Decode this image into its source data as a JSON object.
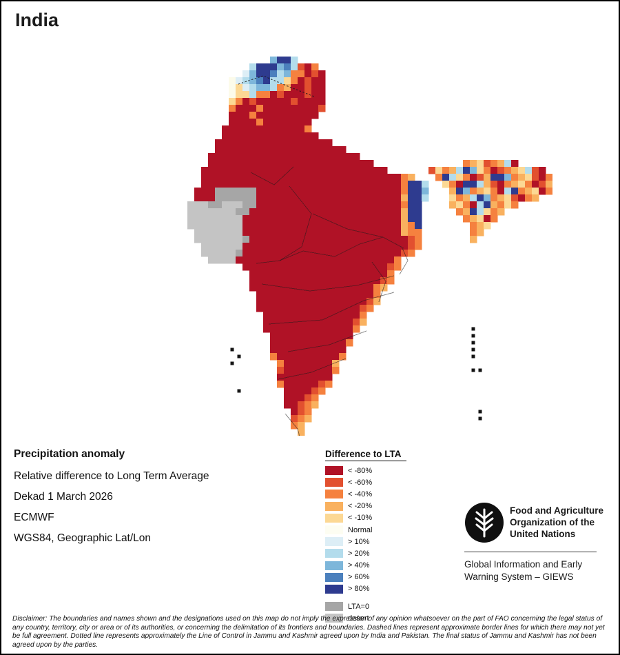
{
  "page": {
    "title": "India",
    "background": "#ffffff",
    "border_color": "#000000"
  },
  "info_block": {
    "heading": "Precipitation anomaly",
    "lines": [
      "Relative difference to Long Term Average",
      "Dekad 1 March 2026",
      "ECMWF",
      "WGS84, Geographic Lat/Lon"
    ]
  },
  "legend": {
    "title": "Difference to LTA",
    "entries": [
      {
        "label": "< -80%",
        "color": "#b01226"
      },
      {
        "label": "< -60%",
        "color": "#e2502f"
      },
      {
        "label": "< -40%",
        "color": "#f5813f"
      },
      {
        "label": "< -20%",
        "color": "#f9b15f"
      },
      {
        "label": "< -10%",
        "color": "#fcd894"
      },
      {
        "label": "Normal",
        "color": "#fdfdf2"
      },
      {
        "label": "> 10%",
        "color": "#ddeef6"
      },
      {
        "label": "> 20%",
        "color": "#b3dcec"
      },
      {
        "label": "> 40%",
        "color": "#7db6da"
      },
      {
        "label": "> 60%",
        "color": "#4b80bd"
      },
      {
        "label": "> 80%",
        "color": "#2e3b8f"
      }
    ],
    "footer_entries": [
      {
        "label": "LTA=0",
        "color": "#a6a6a6"
      },
      {
        "label": "desert",
        "color": "#c4c4c4"
      }
    ]
  },
  "branding": {
    "logo_icon": "fao-logo",
    "org_name_lines": [
      "Food and Agriculture",
      "Organization of the",
      "United Nations"
    ],
    "programme_lines": [
      "Global Information and Early",
      "Warning System – GIEWS"
    ]
  },
  "disclaimer": "Disclaimer: The boundaries and names shown and the designations used on this map do not imply the expression of any opinion whatsoever on the part of FAO concerning the legal status of any country, territory, city or area or of its authorities, or concerning the delimitation of its frontiers and boundaries. Dashed lines represent approximate border lines for which there may not yet be full agreement. Dotted line represents approximately the Line of Control in Jammu and Kashmir agreed upon by India and Pakistan. The final status of Jammu and Kashmir has not been agreed upon by the parties.",
  "map": {
    "cell_size": 10,
    "palette": {
      "R": "#b01226",
      "O": "#e2502f",
      "o": "#f5813f",
      "y": "#f9b15f",
      "c": "#fcd894",
      "n": "#fcfbea",
      "p": "#ddeef6",
      "l": "#b3dcec",
      "m": "#7db6da",
      "b": "#4b80bd",
      "B": "#2e3b8f",
      "G": "#a6a6a6",
      "g": "#c4c4c4",
      "K": "#141414"
    },
    "grid": [
      "............mBBl",
      ".........lBBBmblORo",
      "........pmBBblmooROR",
      "......nplmbBllcoRORR",
      "......ncplmmloyRRORR",
      "......ncclooRORRRORR",
      "......coRORRRRRORRRR",
      "......oRRRoRRRRRRRRO",
      "......RRRoRRRRRRRRR",
      "......RRRRoRRRRRRR",
      ".....RRRRRRRRRRRRo",
      ".....RRRRRRRRRRRRRR",
      "....RRRRRRRRRRRRRRRRR",
      "....RRRRRRRRRRRRRRRRRRR",
      "...RRRRRRRRRRRRRRRRRRRRRR",
      "...RRRRRRRRRRRRRRRRRRRRRRRR.............oycOoylR",
      "..RRRRRRRRRRRRRRRRRRRRRRRRRRR......OcoylBmcoROoyclOR",
      "..RRRRRRRRRRRRRRRRRRRRRRRRRRRRRoy...oBlcoROyBBmoycORo",
      "..RRRRRRRRRRRRRRRRRRRRRRRRRRRRRoBBl..coRBBlyORoycoROy",
      ".RRRGGGGGGRRRRRRRRRRRRRRRRRRRRRoBBm...yBmoycoRlBoycRo",
      ".RRRGGGGGGRRRRRRRRRRRRRRRRRRRRRyBBl...coylBmoycORoy",
      "gggGGgggGGRRRRRRRRRRRRRRRRRRRRRoBB....ycoRlByoco",
      "gggggggGGRRRRRRRRRRRRRRRRRRRRRRyBB.....oyBlcoy",
      "ggggggggRRRRRRRRRRRRRRRRRRRRRRRyBB......oycRo",
      "ggggggggRRRRRRRRRRRRRRRRRRRRRRRyoB.......oyc",
      ".gggggggRRRRRRRRRRRRRRRRRRRRRRRyoo.......oy",
      ".gggggggGRRRRRRRRRRRRRRRRRRRRRRROo.......y",
      "..ggggggRRRRRRRRRRRRRRRRRRRRRRRROo",
      "..gggggGRRRRRRRRRRRRRRRRRRRRRRROo",
      "...ggggRRRRRRRRRRRRRRRRRRRRRRRo",
      "........RRRRRRRRRRRRRRRRRRRRROo",
      ".........RRRRRRRRRRRRRRRRRRRRo",
      ".........RRRRRRRRRRRRRRRRRRROo",
      ".........RRRRRRRRRRRRRRRRRRoy",
      "..........RRRRRRRRRRRRRRRRRo",
      "..........RRRRRRRRRRRRRRRROy",
      "..........RRRRRRRRRRRRRRROo",
      "...........RRRRRRRRRRRRRRo",
      "...........RRRRRRRRRRRRROy",
      "...........RRRRRRRRRRRRRo................K",
      "............RRRRRRRRRRRR.................K",
      "............RRRRRRRRRRRo.................K",
      "......K.....RRRRRRRRRRR..................K",
      ".......K....oRRRRRRRRRo..................K",
      "......K......oRRRRRRRy",
      ".............ORRRRRRRo...................KK",
      ".............RRRRRRRR",
      ".............oRRRRROo",
      ".......K......RRRROo",
      "..............RRROo",
      "..............RROoy",
      "...............ROo........................K",
      "...............Ooy........................K",
      "...............oy",
      "................y"
    ],
    "boundaries": [
      {
        "points": [
          [
            92,
            168
          ],
          [
            126,
            186
          ],
          [
            154,
            160
          ]
        ]
      },
      {
        "points": [
          [
            148,
            188
          ],
          [
            180,
            228
          ],
          [
            166,
            276
          ],
          [
            134,
            296
          ]
        ]
      },
      {
        "points": [
          [
            100,
            300
          ],
          [
            134,
            296
          ],
          [
            168,
            282
          ],
          [
            214,
            290
          ],
          [
            250,
            272
          ],
          [
            284,
            262
          ]
        ]
      },
      {
        "points": [
          [
            182,
            228
          ],
          [
            232,
            250
          ],
          [
            284,
            262
          ],
          [
            314,
            278
          ]
        ]
      },
      {
        "points": [
          [
            108,
            330
          ],
          [
            178,
            340
          ],
          [
            246,
            332
          ],
          [
            300,
            318
          ]
        ]
      },
      {
        "points": [
          [
            118,
            388
          ],
          [
            196,
            382
          ],
          [
            256,
            354
          ],
          [
            300,
            342
          ]
        ]
      },
      {
        "points": [
          [
            146,
            428
          ],
          [
            206,
            418
          ],
          [
            260,
            398
          ]
        ]
      },
      {
        "points": [
          [
            132,
            468
          ],
          [
            180,
            458
          ],
          [
            230,
            438
          ]
        ]
      },
      {
        "points": [
          [
            142,
            518
          ],
          [
            160,
            540
          ],
          [
            170,
            578
          ]
        ]
      },
      {
        "points": [
          [
            268,
            298
          ],
          [
            288,
            326
          ],
          [
            278,
            356
          ]
        ]
      },
      {
        "points": [
          [
            312,
            278
          ],
          [
            320,
            296
          ],
          [
            308,
            316
          ]
        ]
      }
    ],
    "dashed_boundaries": [
      {
        "points": [
          [
            74,
            40
          ],
          [
            110,
            28
          ],
          [
            148,
            44
          ],
          [
            184,
            58
          ]
        ]
      }
    ]
  }
}
